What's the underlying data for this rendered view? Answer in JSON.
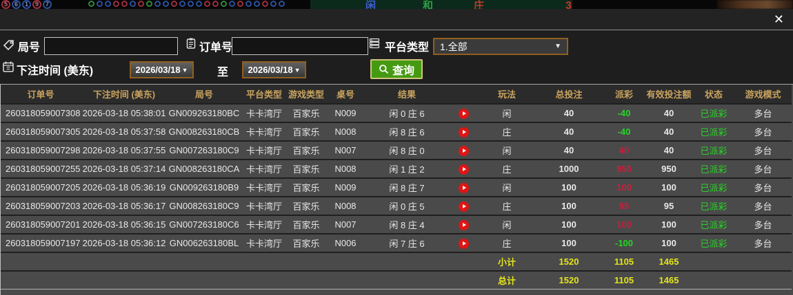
{
  "top_strip": {
    "roadmap_circles": [
      {
        "label": "5",
        "color": "red"
      },
      {
        "label": "6",
        "color": "blue"
      },
      {
        "label": "1",
        "color": "blue"
      },
      {
        "label": "9",
        "color": "red"
      },
      {
        "label": "7",
        "color": "blue"
      }
    ],
    "bead_colors": [
      "green",
      "blue",
      "blue",
      "red",
      "red",
      "blue",
      "red",
      "green",
      "blue",
      "blue",
      "red",
      "blue",
      "blue",
      "blue",
      "red",
      "red",
      "green",
      "blue",
      "red",
      "blue",
      "blue",
      "red",
      "blue",
      "blue"
    ],
    "bet_labels": [
      "闲",
      "和",
      "庄"
    ],
    "corner_number": "3"
  },
  "modal": {
    "close_glyph": "✕",
    "filters": {
      "round_label": "局号",
      "round_value": "",
      "order_label": "订单号",
      "order_value": "",
      "platform_label": "平台类型",
      "platform_selected": "1.全部",
      "dropdown_arrow": "▼",
      "bet_time_label": "下注时间 (美东)",
      "date_from": "2026/03/18",
      "to_label": "至",
      "date_to": "2026/03/18",
      "query_label": "查询"
    },
    "table": {
      "headers": [
        "订单号",
        "下注时间 (美东)",
        "局号",
        "平台类型",
        "游戏类型",
        "桌号",
        "结果",
        "玩法",
        "总投注",
        "派彩",
        "有效投注额",
        "状态",
        "游戏模式"
      ],
      "rows": [
        {
          "order": "260318059007308",
          "time": "2026-03-18 05:38:01",
          "round": "GN009263180BC",
          "platform": "卡卡湾厅",
          "game_type": "百家乐",
          "table_no": "N009",
          "result": "闲 0 庄 6",
          "play": "闲",
          "total_bet": "40",
          "payout": "-40",
          "payout_color": "green",
          "valid_bet": "40",
          "status": "已派彩",
          "mode": "多台"
        },
        {
          "order": "260318059007305",
          "time": "2026-03-18 05:37:58",
          "round": "GN008263180CB",
          "platform": "卡卡湾厅",
          "game_type": "百家乐",
          "table_no": "N008",
          "result": "闲 8 庄 6",
          "play": "庄",
          "total_bet": "40",
          "payout": "-40",
          "payout_color": "green",
          "valid_bet": "40",
          "status": "已派彩",
          "mode": "多台"
        },
        {
          "order": "260318059007298",
          "time": "2026-03-18 05:37:55",
          "round": "GN007263180C9",
          "platform": "卡卡湾厅",
          "game_type": "百家乐",
          "table_no": "N007",
          "result": "闲 8 庄 0",
          "play": "闲",
          "total_bet": "40",
          "payout": "40",
          "payout_color": "red",
          "valid_bet": "40",
          "status": "已派彩",
          "mode": "多台"
        },
        {
          "order": "260318059007255",
          "time": "2026-03-18 05:37:14",
          "round": "GN008263180CA",
          "platform": "卡卡湾厅",
          "game_type": "百家乐",
          "table_no": "N008",
          "result": "闲 1 庄 2",
          "play": "庄",
          "total_bet": "1000",
          "payout": "950",
          "payout_color": "red",
          "valid_bet": "950",
          "status": "已派彩",
          "mode": "多台"
        },
        {
          "order": "260318059007205",
          "time": "2026-03-18 05:36:19",
          "round": "GN009263180B9",
          "platform": "卡卡湾厅",
          "game_type": "百家乐",
          "table_no": "N009",
          "result": "闲 8 庄 7",
          "play": "闲",
          "total_bet": "100",
          "payout": "100",
          "payout_color": "red",
          "valid_bet": "100",
          "status": "已派彩",
          "mode": "多台"
        },
        {
          "order": "260318059007203",
          "time": "2026-03-18 05:36:17",
          "round": "GN008263180C9",
          "platform": "卡卡湾厅",
          "game_type": "百家乐",
          "table_no": "N008",
          "result": "闲 0 庄 5",
          "play": "庄",
          "total_bet": "100",
          "payout": "95",
          "payout_color": "red",
          "valid_bet": "95",
          "status": "已派彩",
          "mode": "多台"
        },
        {
          "order": "260318059007201",
          "time": "2026-03-18 05:36:15",
          "round": "GN007263180C6",
          "platform": "卡卡湾厅",
          "game_type": "百家乐",
          "table_no": "N007",
          "result": "闲 8 庄 4",
          "play": "闲",
          "total_bet": "100",
          "payout": "100",
          "payout_color": "red",
          "valid_bet": "100",
          "status": "已派彩",
          "mode": "多台"
        },
        {
          "order": "260318059007197",
          "time": "2026-03-18 05:36:12",
          "round": "GN006263180BL",
          "platform": "卡卡湾厅",
          "game_type": "百家乐",
          "table_no": "N006",
          "result": "闲 7 庄 6",
          "play": "庄",
          "total_bet": "100",
          "payout": "-100",
          "payout_color": "green",
          "valid_bet": "100",
          "status": "已派彩",
          "mode": "多台"
        }
      ],
      "subtotal": {
        "label": "小计",
        "total_bet": "1520",
        "payout": "1105",
        "valid_bet": "1465"
      },
      "grand_total": {
        "label": "总计",
        "total_bet": "1520",
        "payout": "1105",
        "valid_bet": "1465"
      }
    },
    "colors": {
      "header_text": "#c9a35f",
      "summary_text": "#e4e41c",
      "win_red": "#c81f3c",
      "loss_green": "#28d428",
      "status_green": "#28d428",
      "button_green": "#459a12",
      "picker_border": "#925f1e"
    },
    "icons": {
      "round": "tag-icon",
      "order": "clipboard-icon",
      "platform": "list-icon",
      "bet_time": "calendar-icon",
      "query": "search-icon",
      "close": "✕",
      "dropdown": "▼",
      "result_replay": "play-icon"
    }
  }
}
